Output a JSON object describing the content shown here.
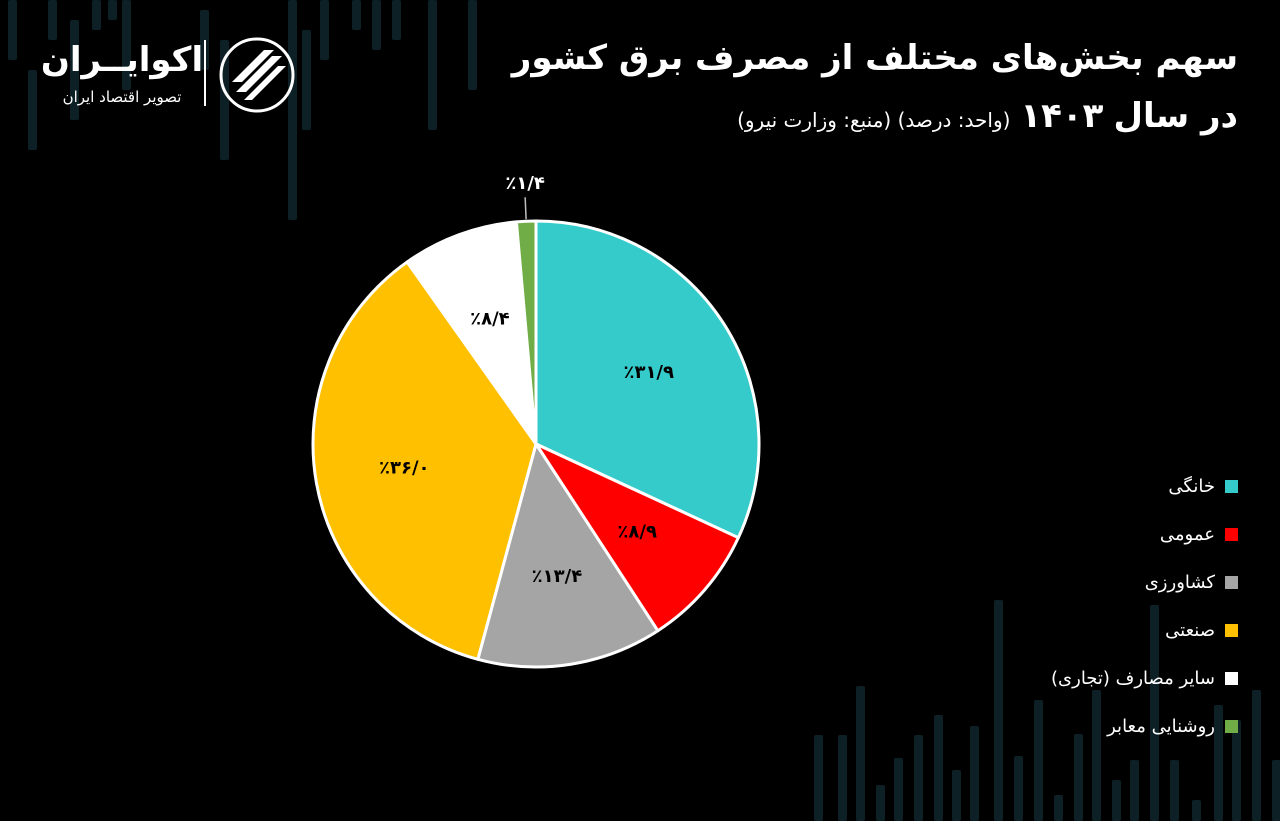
{
  "header": {
    "title": "سهم بخش‌های مختلف از مصرف برق کشور",
    "subtitle_main": "در سال",
    "subtitle_year": "۱۴۰۳",
    "subtitle_note": "(واحد: درصد) (منبع: وزارت نیرو)"
  },
  "logo": {
    "brand": "اکوایــران",
    "tagline": "تصویر اقتصاد ایران",
    "icon": "ecoiran-logo-mark"
  },
  "colors": {
    "background": "#000000",
    "outline": "#ffffff",
    "background_bars": "#0d2026"
  },
  "chart_data": {
    "type": "pie",
    "categories": [
      "خانگی",
      "عمومی",
      "کشاورزی",
      "صنعتی",
      "سایر مصارف (تجاری)",
      "روشنایی معابر"
    ],
    "values": [
      31.9,
      8.9,
      13.4,
      36.0,
      8.4,
      1.4
    ],
    "labels": [
      "٪۳۱/۹",
      "٪۸/۹",
      "٪۱۳/۴",
      "٪۳۶/۰",
      "٪۸/۴",
      "٪۱/۴"
    ],
    "colors": [
      "#36cbcb",
      "#ff0000",
      "#a5a5a5",
      "#ffc000",
      "#ffffff",
      "#70ad47"
    ],
    "legend_position": "right",
    "start": "top",
    "direction": "clockwise"
  }
}
